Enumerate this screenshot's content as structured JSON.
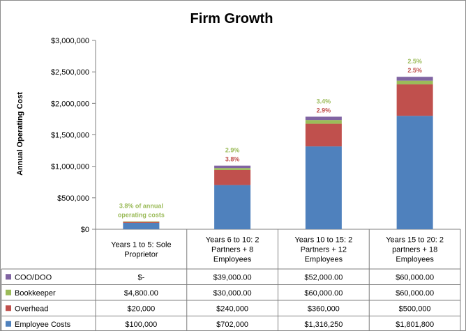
{
  "chart_data": {
    "type": "bar",
    "stacked": true,
    "title": "Firm Growth",
    "ylabel": "Annual Operating Cost",
    "ylim": [
      0,
      3000000
    ],
    "yticks": [
      "$0",
      "$500,000",
      "$1,000,000",
      "$1,500,000",
      "$2,000,000",
      "$2,500,000",
      "$3,000,000"
    ],
    "categories": [
      [
        "Years 1 to 5: Sole",
        "Proprietor"
      ],
      [
        "Years 6 to 10: 2",
        "Partners + 8",
        "Employees"
      ],
      [
        "Years 10 to 15: 2",
        "Partners + 12",
        "Employees"
      ],
      [
        "Years 15 to 20: 2",
        "partners + 18",
        "Employees"
      ]
    ],
    "series": [
      {
        "name": "Employee Costs",
        "color": "#4f81bd",
        "values": [
          100000,
          702000,
          1316250,
          1801800
        ],
        "labels": [
          "$100,000",
          "$702,000",
          "$1,316,250",
          "$1,801,800"
        ]
      },
      {
        "name": "Overhead",
        "color": "#c0504d",
        "values": [
          20000,
          240000,
          360000,
          500000
        ],
        "labels": [
          "$20,000",
          "$240,000",
          "$360,000",
          "$500,000"
        ]
      },
      {
        "name": "Bookkeeper",
        "color": "#9bbb59",
        "values": [
          4800,
          30000,
          60000,
          60000
        ],
        "labels": [
          "$4,800.00",
          "$30,000.00",
          "$60,000.00",
          "$60,000.00"
        ]
      },
      {
        "name": "COO/DOO",
        "color": "#8064a2",
        "values": [
          0,
          39000,
          52000,
          60000
        ],
        "labels": [
          "$-",
          "$39,000.00",
          "$52,000.00",
          "$60,000.00"
        ]
      }
    ],
    "annotations": [
      {
        "category": 0,
        "lines": [
          {
            "text": "3.8% of annual",
            "color": "#9bbb59"
          },
          {
            "text": "operating costs",
            "color": "#9bbb59"
          }
        ]
      },
      {
        "category": 1,
        "lines": [
          {
            "text": "2.9%",
            "color": "#9bbb59"
          },
          {
            "text": "3.8%",
            "color": "#c0504d"
          }
        ]
      },
      {
        "category": 2,
        "lines": [
          {
            "text": "3.4%",
            "color": "#9bbb59"
          },
          {
            "text": "2.9%",
            "color": "#c0504d"
          }
        ]
      },
      {
        "category": 3,
        "lines": [
          {
            "text": "2.5%",
            "color": "#9bbb59"
          },
          {
            "text": "2.5%",
            "color": "#c0504d"
          }
        ]
      }
    ],
    "grid": false,
    "legend": "data-table"
  }
}
